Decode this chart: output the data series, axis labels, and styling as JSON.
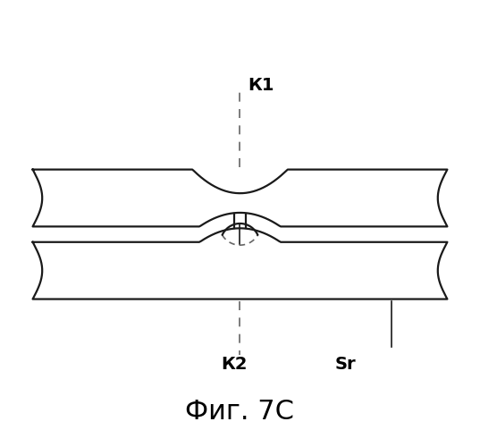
{
  "title": "Фиг. 7С",
  "label_k1": "К1",
  "label_k2": "К2",
  "label_sr": "Sr",
  "bg_color": "#ffffff",
  "line_color": "#1a1a1a",
  "dashed_color": "#666666",
  "fig_width": 5.37,
  "fig_height": 5.0,
  "dpi": 100
}
